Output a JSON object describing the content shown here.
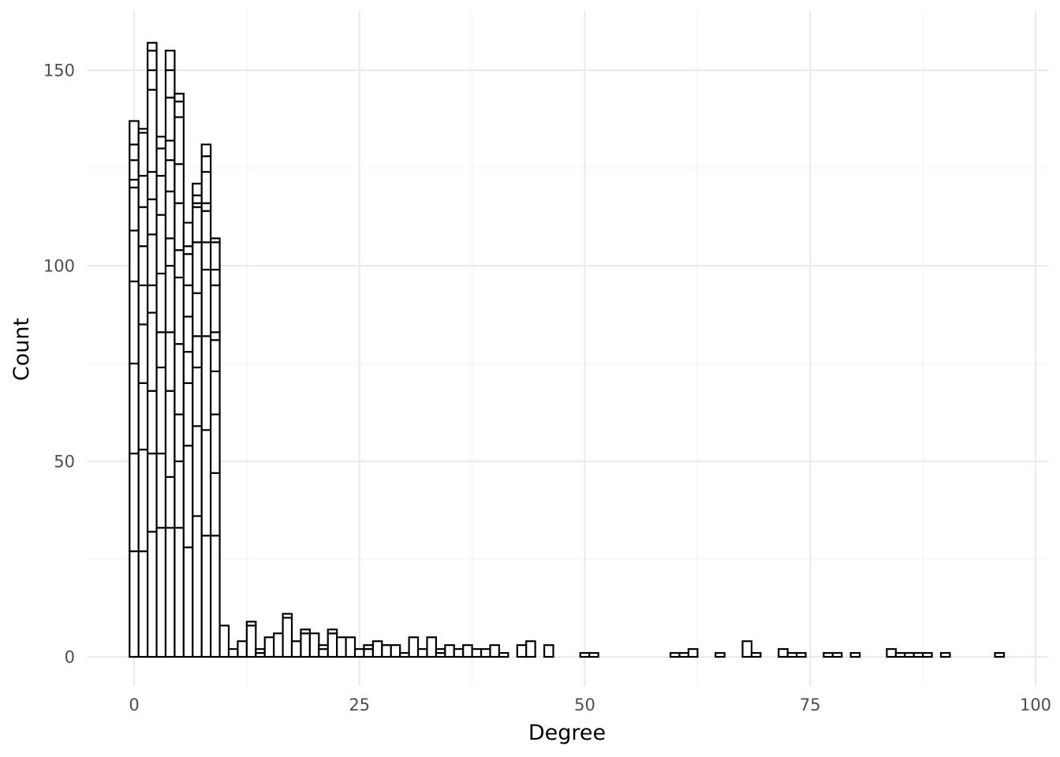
{
  "chart_data": {
    "type": "bar",
    "subtype": "stacked-histogram",
    "title": "",
    "xlabel": "Degree",
    "ylabel": "Count",
    "xlim": [
      -5,
      100
    ],
    "ylim": [
      -8,
      165
    ],
    "x_ticks": [
      0,
      25,
      50,
      75,
      100
    ],
    "x_tick_labels": [
      "0",
      "25",
      "50",
      "75",
      "100"
    ],
    "y_ticks": [
      0,
      50,
      100,
      150
    ],
    "y_tick_labels": [
      "0",
      "50",
      "100",
      "150"
    ],
    "grid": true,
    "legend": "none",
    "bin_width": 1,
    "series_note": "stacked segments; each entry lists cumulative boundary counts within one bin",
    "bins": [
      {
        "x": 0,
        "cuts": [
          27,
          52,
          75,
          96,
          109,
          120,
          122,
          127,
          131,
          137
        ]
      },
      {
        "x": 1,
        "cuts": [
          27,
          53,
          70,
          85,
          95,
          105,
          115,
          123,
          134,
          135
        ]
      },
      {
        "x": 2,
        "cuts": [
          32,
          52,
          68,
          88,
          95,
          108,
          117,
          124,
          145,
          150,
          155,
          157
        ]
      },
      {
        "x": 3,
        "cuts": [
          33,
          52,
          74,
          83,
          98,
          113,
          123,
          130,
          133
        ]
      },
      {
        "x": 4,
        "cuts": [
          33,
          46,
          68,
          83,
          100,
          107,
          119,
          127,
          132,
          143,
          150,
          155
        ]
      },
      {
        "x": 5,
        "cuts": [
          33,
          50,
          62,
          80,
          97,
          104,
          116,
          126,
          138,
          142,
          144
        ]
      },
      {
        "x": 6,
        "cuts": [
          28,
          54,
          70,
          78,
          87,
          95,
          103,
          105,
          111
        ]
      },
      {
        "x": 7,
        "cuts": [
          36,
          59,
          74,
          82,
          93,
          106,
          115,
          116,
          118,
          121
        ]
      },
      {
        "x": 8,
        "cuts": [
          31,
          58,
          82,
          99,
          106,
          114,
          116,
          124,
          128,
          131
        ]
      },
      {
        "x": 9,
        "cuts": [
          31,
          47,
          62,
          73,
          81,
          83,
          95,
          99,
          106,
          107
        ]
      },
      {
        "x": 10,
        "cuts": [
          8
        ]
      },
      {
        "x": 11,
        "cuts": [
          2
        ]
      },
      {
        "x": 12,
        "cuts": [
          4
        ]
      },
      {
        "x": 13,
        "cuts": [
          8,
          9
        ]
      },
      {
        "x": 14,
        "cuts": [
          1,
          2
        ]
      },
      {
        "x": 15,
        "cuts": [
          5
        ]
      },
      {
        "x": 16,
        "cuts": [
          6
        ]
      },
      {
        "x": 17,
        "cuts": [
          10,
          11
        ]
      },
      {
        "x": 18,
        "cuts": [
          4
        ]
      },
      {
        "x": 19,
        "cuts": [
          6,
          7
        ]
      },
      {
        "x": 20,
        "cuts": [
          6
        ]
      },
      {
        "x": 21,
        "cuts": [
          2,
          3
        ]
      },
      {
        "x": 22,
        "cuts": [
          6,
          7
        ]
      },
      {
        "x": 23,
        "cuts": [
          5
        ]
      },
      {
        "x": 24,
        "cuts": [
          5
        ]
      },
      {
        "x": 25,
        "cuts": [
          2
        ]
      },
      {
        "x": 26,
        "cuts": [
          2,
          3
        ]
      },
      {
        "x": 27,
        "cuts": [
          4
        ]
      },
      {
        "x": 28,
        "cuts": [
          3
        ]
      },
      {
        "x": 29,
        "cuts": [
          3
        ]
      },
      {
        "x": 30,
        "cuts": [
          1
        ]
      },
      {
        "x": 31,
        "cuts": [
          5
        ]
      },
      {
        "x": 32,
        "cuts": [
          2
        ]
      },
      {
        "x": 33,
        "cuts": [
          5
        ]
      },
      {
        "x": 34,
        "cuts": [
          1,
          2
        ]
      },
      {
        "x": 35,
        "cuts": [
          3
        ]
      },
      {
        "x": 36,
        "cuts": [
          2
        ]
      },
      {
        "x": 37,
        "cuts": [
          3
        ]
      },
      {
        "x": 38,
        "cuts": [
          2
        ]
      },
      {
        "x": 39,
        "cuts": [
          2
        ]
      },
      {
        "x": 40,
        "cuts": [
          3
        ]
      },
      {
        "x": 41,
        "cuts": [
          1
        ]
      },
      {
        "x": 43,
        "cuts": [
          3
        ]
      },
      {
        "x": 44,
        "cuts": [
          4
        ]
      },
      {
        "x": 46,
        "cuts": [
          3
        ]
      },
      {
        "x": 50,
        "cuts": [
          1
        ]
      },
      {
        "x": 51,
        "cuts": [
          1
        ]
      },
      {
        "x": 60,
        "cuts": [
          1
        ]
      },
      {
        "x": 61,
        "cuts": [
          1
        ]
      },
      {
        "x": 62,
        "cuts": [
          2
        ]
      },
      {
        "x": 65,
        "cuts": [
          1
        ]
      },
      {
        "x": 68,
        "cuts": [
          4
        ]
      },
      {
        "x": 69,
        "cuts": [
          1
        ]
      },
      {
        "x": 72,
        "cuts": [
          2
        ]
      },
      {
        "x": 73,
        "cuts": [
          1
        ]
      },
      {
        "x": 74,
        "cuts": [
          1
        ]
      },
      {
        "x": 77,
        "cuts": [
          1
        ]
      },
      {
        "x": 78,
        "cuts": [
          1
        ]
      },
      {
        "x": 80,
        "cuts": [
          1
        ]
      },
      {
        "x": 84,
        "cuts": [
          2
        ]
      },
      {
        "x": 85,
        "cuts": [
          1
        ]
      },
      {
        "x": 86,
        "cuts": [
          1
        ]
      },
      {
        "x": 87,
        "cuts": [
          1
        ]
      },
      {
        "x": 88,
        "cuts": [
          1
        ]
      },
      {
        "x": 90,
        "cuts": [
          1
        ]
      },
      {
        "x": 96,
        "cuts": [
          1
        ]
      }
    ]
  }
}
